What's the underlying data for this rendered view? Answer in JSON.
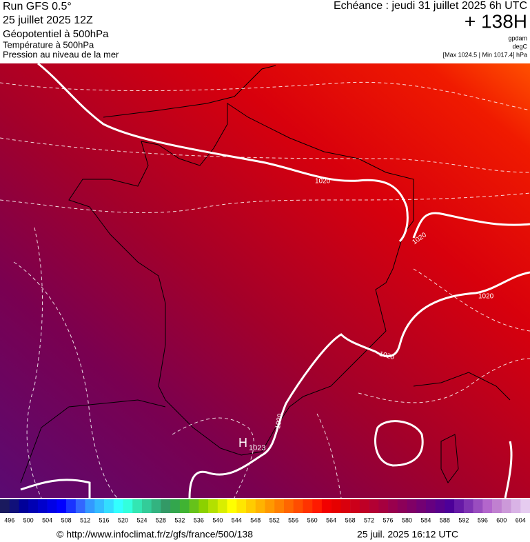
{
  "header": {
    "left": [
      "Run GFS 0.5°",
      "25 juillet 2025 12Z",
      "Géopotentiel à 500hPa",
      "Température à 500hPa",
      "Pression au niveau de la mer"
    ],
    "right": {
      "echeance": "Echéance : jeudi 31 juillet 2025 6h UTC",
      "lead": "+ 138H",
      "units": [
        "gpdam",
        "degC",
        "[Max 1024.5 | Min 1017.4] hPa"
      ]
    }
  },
  "map": {
    "isobar_labels": [
      1020,
      1020,
      1020,
      1020,
      1020
    ],
    "high": {
      "letter": "H",
      "value": 1023
    }
  },
  "colorbar": {
    "labels": [
      496,
      500,
      504,
      508,
      512,
      516,
      520,
      524,
      528,
      532,
      536,
      540,
      544,
      548,
      552,
      556,
      560,
      564,
      568,
      572,
      576,
      580,
      584,
      588,
      592,
      596,
      600,
      604
    ],
    "colors": [
      "#1a1a5e",
      "#10107a",
      "#000099",
      "#0000b3",
      "#0000cc",
      "#0000e6",
      "#0000ff",
      "#1a33ff",
      "#3366ff",
      "#3399ff",
      "#33bbff",
      "#33ddff",
      "#33ffff",
      "#33ffdd",
      "#33e6b3",
      "#33cc99",
      "#33b380",
      "#339966",
      "#33a64d",
      "#40b333",
      "#66c21a",
      "#8cd100",
      "#b3e000",
      "#d9ee00",
      "#ffff00",
      "#ffe600",
      "#ffcc00",
      "#ffb300",
      "#ff9900",
      "#ff8000",
      "#ff6600",
      "#ff4d00",
      "#ff3300",
      "#ff1a00",
      "#f20000",
      "#e60000",
      "#d9000d",
      "#cc001a",
      "#bf0026",
      "#b30033",
      "#a6003f",
      "#99004d",
      "#8c0059",
      "#800066",
      "#730073",
      "#660080",
      "#59008c",
      "#4d0099",
      "#6619a6",
      "#7f33b3",
      "#994dbf",
      "#b366cc",
      "#c080d0",
      "#cc99d9",
      "#d9b3e6",
      "#e6ccf0"
    ]
  },
  "footer": {
    "url": "© http://www.infoclimat.fr/z/gfs/france/500/138",
    "date": "25 juil. 2025 16:12 UTC"
  }
}
